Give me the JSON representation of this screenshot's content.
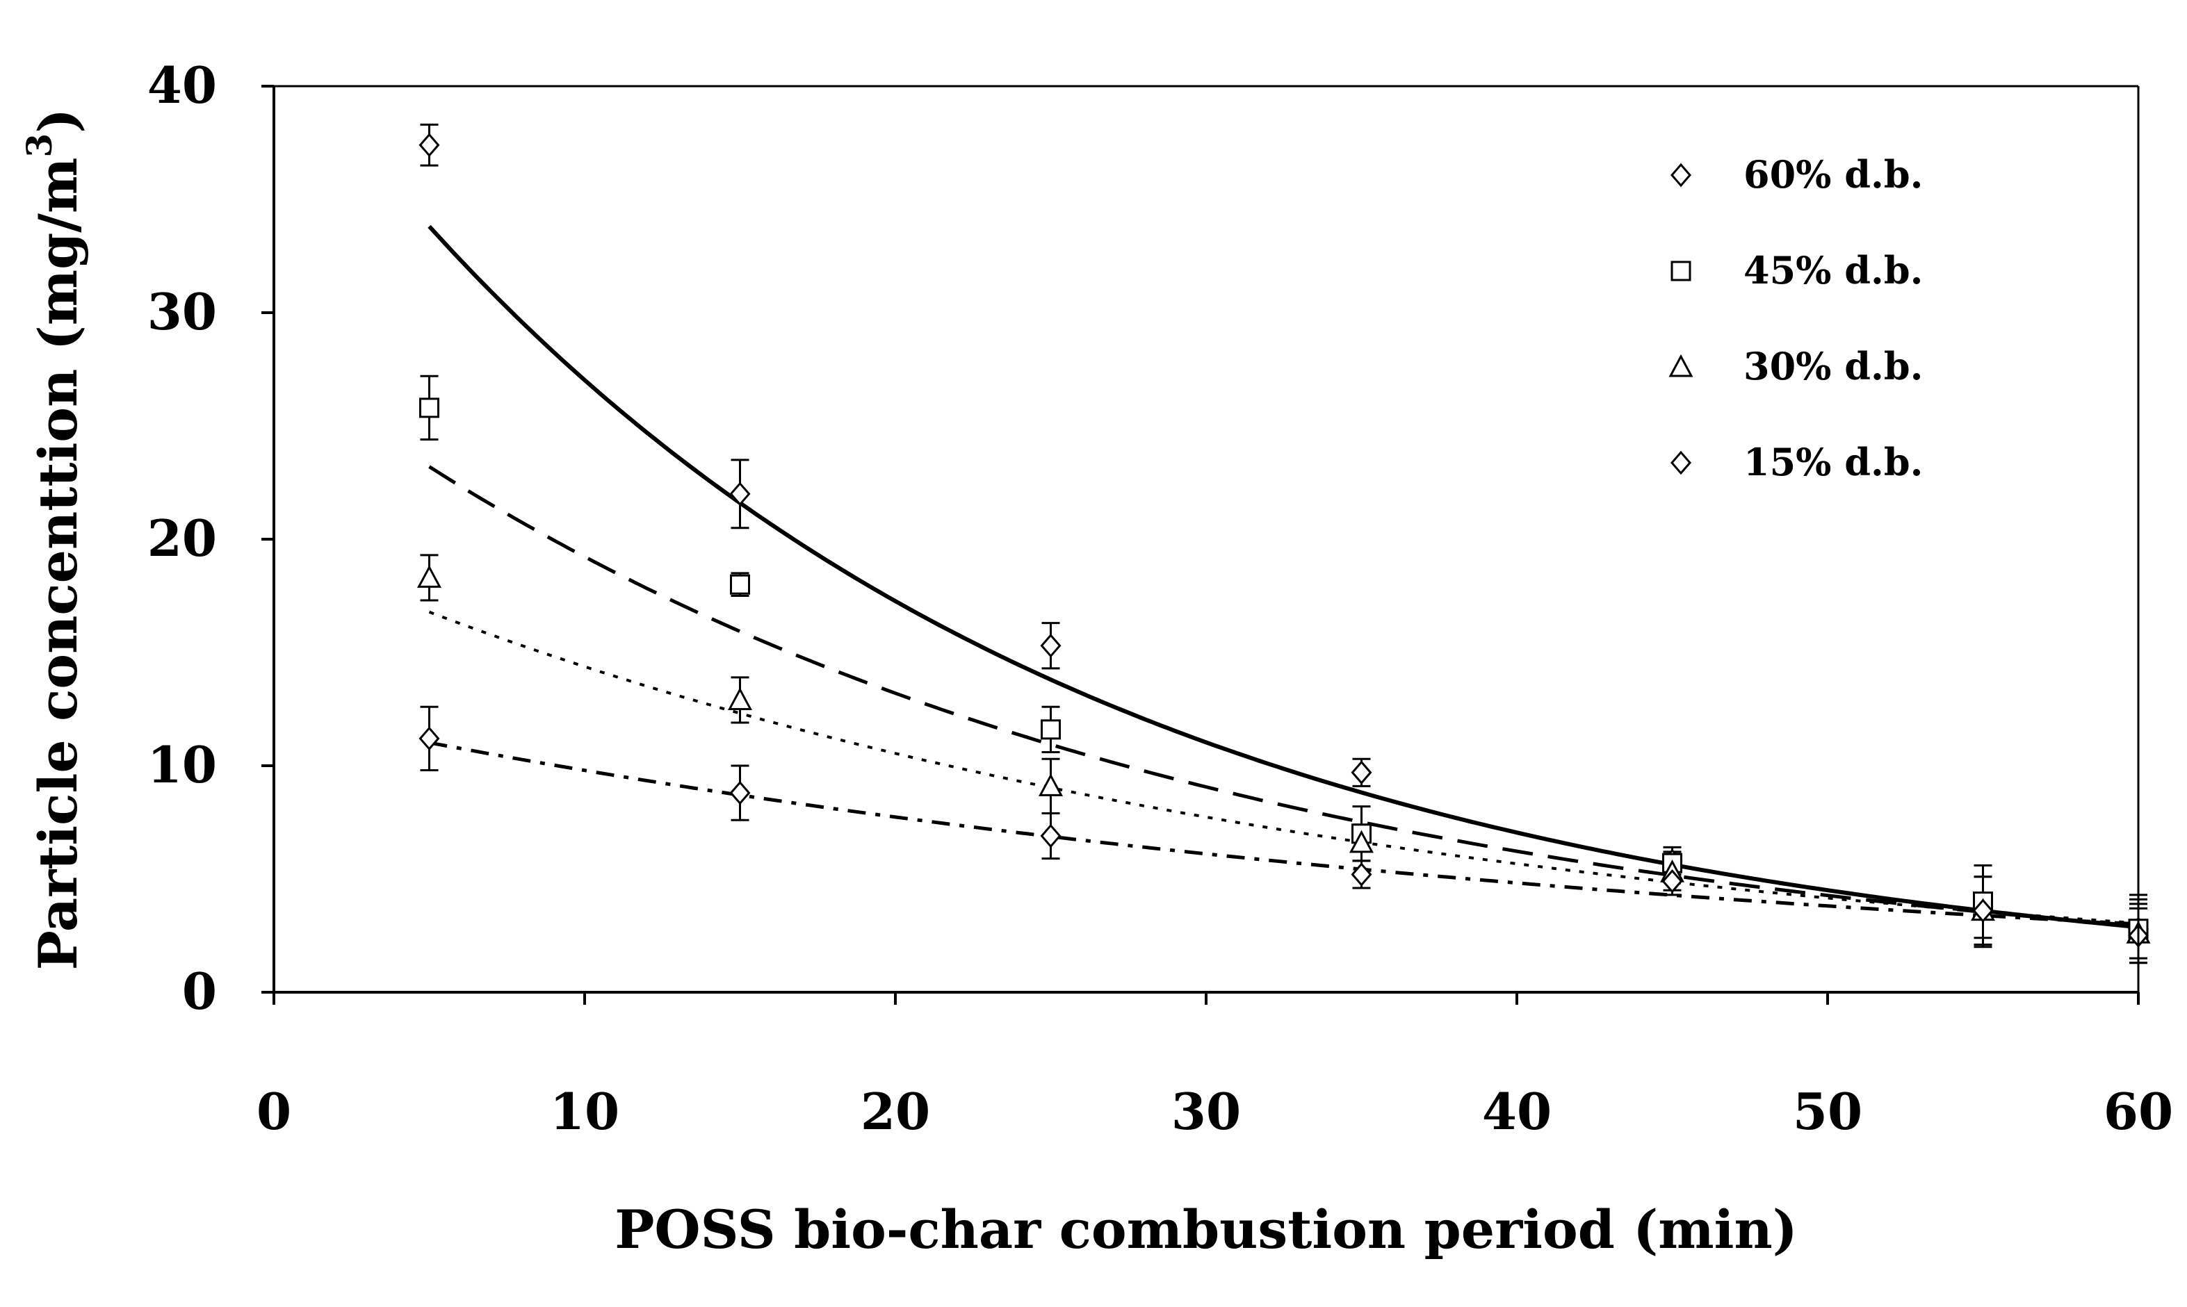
{
  "chart_data": {
    "type": "scatter",
    "title": "",
    "xlabel": "POSS bio-char combustion period (min)",
    "ylabel_main": "Particle concenttion (mg/m",
    "ylabel_sup": "3",
    "ylabel_end": ")",
    "xlim": [
      0,
      60
    ],
    "ylim": [
      0,
      40
    ],
    "xticks": [
      0,
      10,
      20,
      30,
      40,
      50,
      60
    ],
    "yticks": [
      0,
      10,
      20,
      30,
      40
    ],
    "xtick_labels": [
      "0",
      "10",
      "20",
      "30",
      "40",
      "50",
      "60"
    ],
    "ytick_labels": [
      "0",
      "10",
      "20",
      "30",
      "40"
    ],
    "legend_position": "top-right",
    "x": [
      5,
      15,
      25,
      35,
      45,
      55,
      60
    ],
    "series": [
      {
        "name": "60% d.b.",
        "marker": "diamond",
        "line": "solid",
        "values": [
          37.4,
          22.0,
          15.3,
          9.7,
          5.8,
          3.8,
          2.8
        ],
        "errors": [
          0.9,
          1.5,
          1.0,
          0.6,
          0.6,
          1.8,
          1.3
        ]
      },
      {
        "name": "45% d.b.",
        "marker": "square",
        "line": "long-dash",
        "values": [
          25.8,
          18.0,
          11.6,
          7.0,
          5.7,
          4.0,
          2.8
        ],
        "errors": [
          1.4,
          0.5,
          1.0,
          1.2,
          0.5,
          1.6,
          1.5
        ]
      },
      {
        "name": "30% d.b.",
        "marker": "triangle",
        "line": "dotted",
        "values": [
          18.3,
          12.9,
          9.1,
          6.6,
          5.3,
          3.6,
          2.6
        ],
        "errors": [
          1.0,
          1.0,
          1.2,
          0.8,
          0.8,
          1.5,
          1.3
        ]
      },
      {
        "name": "15% d.b.",
        "marker": "diamond",
        "line": "dash-dot",
        "values": [
          11.2,
          8.8,
          6.9,
          5.2,
          4.9,
          3.6,
          2.5
        ],
        "errors": [
          1.4,
          1.2,
          1.0,
          0.6,
          0.6,
          1.5,
          1.2
        ]
      }
    ],
    "fits": [
      {
        "series": "60% d.b.",
        "a": 42.3,
        "b": 0.0448
      },
      {
        "series": "45% d.b.",
        "a": 28.0,
        "b": 0.0376
      },
      {
        "series": "30% d.b.",
        "a": 19.6,
        "b": 0.031
      },
      {
        "series": "15% d.b.",
        "a": 12.4,
        "b": 0.0236
      }
    ]
  }
}
